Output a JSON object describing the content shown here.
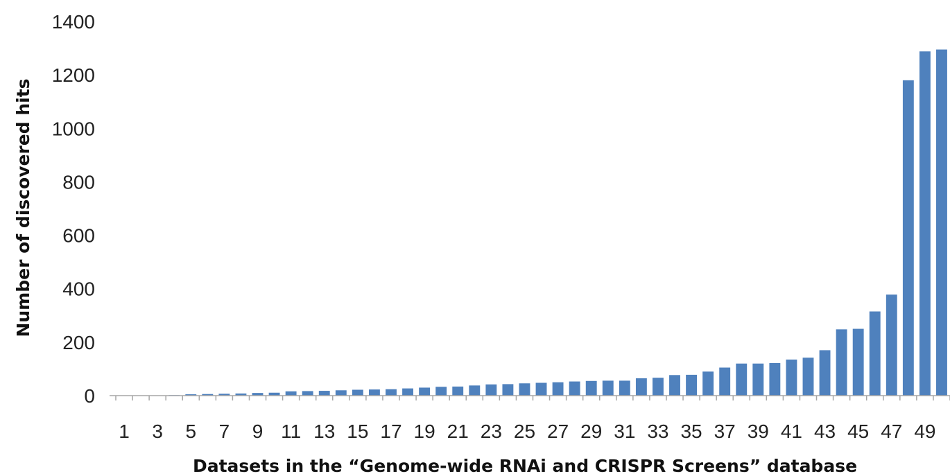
{
  "chart_data": {
    "type": "bar",
    "title": "",
    "xlabel": "Datasets in the “Genome-wide RNAi and CRISPR Screens” database",
    "ylabel": "Number of discovered hits",
    "ylim": [
      0,
      1400
    ],
    "yticks": [
      "0",
      "200",
      "400",
      "600",
      "800",
      "1000",
      "1200",
      "1400"
    ],
    "grid": false,
    "legend": "none",
    "bar_color": "#4f81bd",
    "categories": [
      "1",
      "2",
      "3",
      "4",
      "5",
      "6",
      "7",
      "8",
      "9",
      "10",
      "11",
      "12",
      "13",
      "14",
      "15",
      "16",
      "17",
      "18",
      "19",
      "20",
      "21",
      "22",
      "23",
      "24",
      "25",
      "26",
      "27",
      "28",
      "29",
      "30",
      "31",
      "32",
      "33",
      "34",
      "35",
      "36",
      "37",
      "38",
      "39",
      "40",
      "41",
      "42",
      "43",
      "44",
      "45",
      "46",
      "47",
      "48",
      "49",
      "50"
    ],
    "xtick_labels": [
      "1",
      "3",
      "5",
      "7",
      "9",
      "11",
      "13",
      "15",
      "17",
      "19",
      "21",
      "23",
      "25",
      "27",
      "29",
      "31",
      "33",
      "35",
      "37",
      "39",
      "41",
      "43",
      "45",
      "47",
      "49"
    ],
    "values": [
      0,
      0,
      0,
      2,
      5,
      6,
      7,
      8,
      10,
      11,
      16,
      17,
      18,
      20,
      22,
      23,
      24,
      27,
      30,
      33,
      34,
      38,
      42,
      43,
      46,
      48,
      50,
      53,
      55,
      56,
      56,
      65,
      67,
      77,
      78,
      90,
      105,
      120,
      120,
      122,
      135,
      142,
      170,
      248,
      250,
      315,
      378,
      1180,
      1288,
      1295
    ]
  }
}
